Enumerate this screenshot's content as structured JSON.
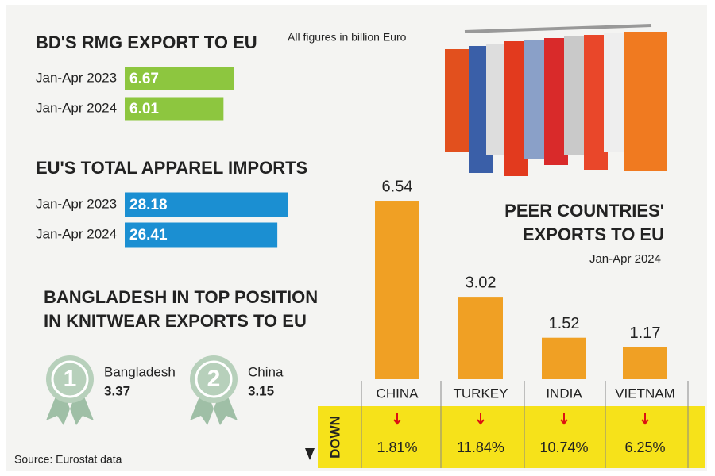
{
  "note": "All figures in billion Euro",
  "source": "Source: Eurostat data",
  "knitwear": {
    "title_lines": [
      "BANGLADESH IN TOP POSITION",
      "IN KNITWEAR EXPORTS TO EU"
    ],
    "items": [
      {
        "rank": 1,
        "name": "Bangladesh",
        "value": 3.37
      },
      {
        "rank": 2,
        "name": "China",
        "value": 3.15
      }
    ]
  },
  "chart_data": [
    {
      "type": "hbar",
      "title": "BD'S RMG EXPORT TO EU",
      "categories": [
        "Jan-Apr 2023",
        "Jan-Apr 2024"
      ],
      "values": [
        6.67,
        6.01
      ],
      "color": "#8dc63f"
    },
    {
      "type": "hbar",
      "title": "EU'S TOTAL APPAREL IMPORTS",
      "categories": [
        "Jan-Apr 2023",
        "Jan-Apr 2024"
      ],
      "values": [
        28.18,
        26.41
      ],
      "color": "#1b8fd2"
    },
    {
      "type": "bar",
      "title_lines": [
        "PEER COUNTRIES'",
        "EXPORTS TO EU"
      ],
      "subtitle": "Jan-Apr 2024",
      "categories": [
        "CHINA",
        "TURKEY",
        "INDIA",
        "VIETNAM"
      ],
      "values": [
        6.54,
        3.02,
        1.52,
        1.17
      ],
      "color": "#f0a024",
      "change_label": "DOWN",
      "changes": [
        "1.81%",
        "11.84%",
        "10.74%",
        "6.25%"
      ]
    }
  ]
}
